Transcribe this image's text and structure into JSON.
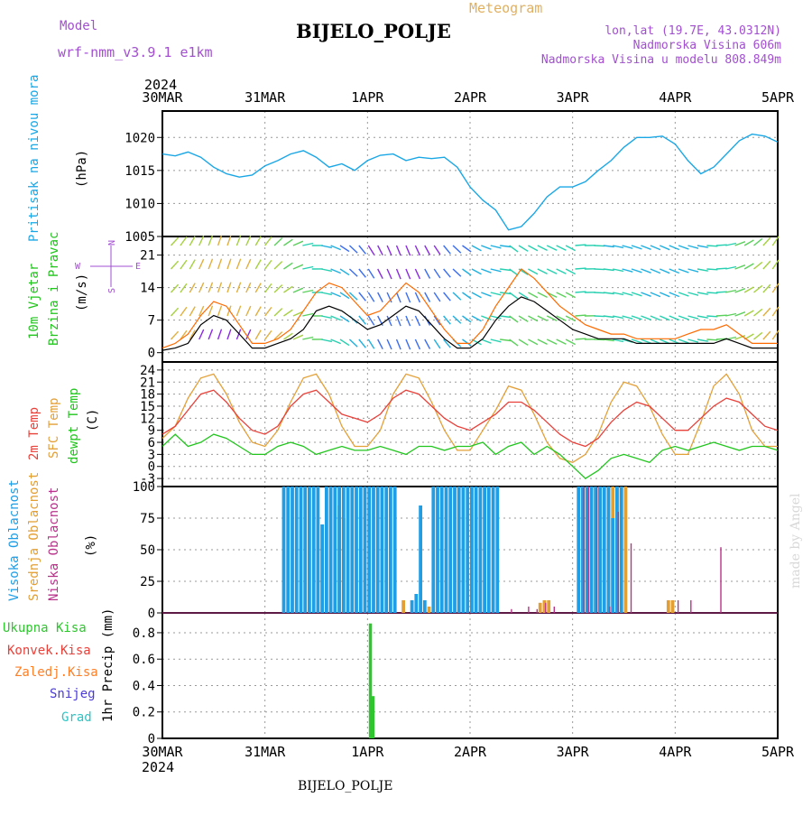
{
  "header": {
    "model_label": "Model",
    "model_name": "wrf-nmm_v3.9.1 e1km",
    "title": "BIJELO_POLJE",
    "product": "Meteogram",
    "lonlat": "lon,lat (19.7E, 43.0312N)",
    "elevation": "Nadmorska Visina 606m",
    "model_elevation": "Nadmorska Visina u modelu 808.849m",
    "watermark": "made by Angel",
    "footer_station": "BIJELO_POLJE"
  },
  "time_axis": {
    "year": "2024",
    "ticks": [
      "30MAR",
      "31MAR",
      "1APR",
      "2APR",
      "3APR",
      "4APR",
      "5APR"
    ]
  },
  "panels": {
    "pressure": {
      "label": "Pritisak na nivou mora",
      "unit": "(hPa)"
    },
    "wind": {
      "label1": "10m Vjetar",
      "label2": "Brzina i Pravac",
      "unit": "(m/s)",
      "compass": {
        "n": "N",
        "s": "S",
        "e": "E",
        "w": "W"
      }
    },
    "temp": {
      "label1": "2m Temp",
      "label2": "SFC Temp",
      "label3": "dewpt Temp",
      "unit": "(C)"
    },
    "cloud": {
      "label1": "Visoka Oblacnost",
      "label2": "Srednja Oblacnost",
      "label3": "Niska Oblacnost",
      "unit": "(%)"
    },
    "precip": {
      "label_total": "Ukupna Kisa",
      "label_conv": "Konvek.Kisa",
      "label_frz": "Zaledj.Kisa",
      "label_snow": "Snijeg",
      "label_grad": "Grad",
      "unit": "1hr Precip (mm)"
    }
  },
  "colors": {
    "pressure": "#1aa7e6",
    "wind_speed": "#000000",
    "wind_gust": "#ff6a00",
    "t2m": "#e8413a",
    "sfc": "#e3a13a",
    "dew": "#22c51e",
    "cloud_high": "#1f9ee6",
    "cloud_mid": "#e39f34",
    "cloud_low": "#b8338a",
    "total": "#2ec52e",
    "conv": "#e8413a",
    "frz": "#ff7f27",
    "snow": "#4b3bd8",
    "grad": "#2dc3c3",
    "model": "#a24fd0",
    "product": "#e0b060"
  },
  "chart_data": [
    {
      "type": "line",
      "name": "pressure",
      "ylabel": "(hPa)",
      "ylim": [
        1005,
        1024
      ],
      "yticks": [
        1005,
        1010,
        1015,
        1020
      ],
      "x_hours": [
        0,
        3,
        6,
        9,
        12,
        15,
        18,
        21,
        24,
        27,
        30,
        33,
        36,
        39,
        42,
        45,
        48,
        51,
        54,
        57,
        60,
        63,
        66,
        69,
        72,
        75,
        78,
        81,
        84,
        87,
        90,
        93,
        96,
        99,
        102,
        105,
        108,
        111,
        114,
        117,
        120,
        123,
        126,
        129,
        132,
        135,
        138,
        141,
        144
      ],
      "series": [
        {
          "values": [
            1017.5,
            1017.2,
            1017.8,
            1017,
            1015.5,
            1014.5,
            1014,
            1014.3,
            1015.7,
            1016.5,
            1017.5,
            1018,
            1017,
            1015.5,
            1016,
            1015,
            1016.5,
            1017.3,
            1017.5,
            1016.5,
            1017,
            1016.8,
            1017,
            1015.5,
            1012.5,
            1010.5,
            1009,
            1006,
            1006.5,
            1008.5,
            1011,
            1012.5,
            1012.5,
            1013.3,
            1015,
            1016.5,
            1018.5,
            1020,
            1020,
            1020.2,
            1019,
            1016.5,
            1014.5,
            1015.5,
            1017.5,
            1019.5,
            1020.5,
            1020.2,
            1019.3
          ]
        }
      ]
    },
    {
      "type": "line",
      "name": "wind",
      "ylabel": "(m/s)",
      "ylim": [
        -2,
        25
      ],
      "yticks": [
        0,
        7,
        14,
        21
      ],
      "x_hours": [
        0,
        3,
        6,
        9,
        12,
        15,
        18,
        21,
        24,
        27,
        30,
        33,
        36,
        39,
        42,
        45,
        48,
        51,
        54,
        57,
        60,
        63,
        66,
        69,
        72,
        75,
        78,
        81,
        84,
        87,
        90,
        93,
        96,
        99,
        102,
        105,
        108,
        111,
        114,
        117,
        120,
        123,
        126,
        129,
        132,
        135,
        138,
        141,
        144
      ],
      "series": [
        {
          "values": [
            0.5,
            1,
            2,
            6,
            8,
            7,
            4,
            1,
            1,
            2,
            3,
            5,
            9,
            10,
            9,
            7,
            5,
            6,
            8,
            10,
            9,
            6,
            3,
            1,
            1,
            3,
            7,
            10,
            12,
            11,
            9,
            7,
            5,
            4,
            3,
            3,
            3,
            2,
            2,
            2,
            2,
            2,
            2,
            2,
            3,
            2,
            1,
            1,
            1
          ]
        },
        {
          "values": [
            1,
            2,
            4,
            8,
            11,
            10,
            6,
            2,
            2,
            3,
            5,
            9,
            13,
            15,
            14,
            11,
            8,
            9,
            12,
            15,
            13,
            9,
            5,
            2,
            2,
            5,
            10,
            14,
            18,
            16,
            13,
            10,
            8,
            6,
            5,
            4,
            4,
            3,
            3,
            3,
            3,
            4,
            5,
            5,
            6,
            4,
            2,
            2,
            2
          ]
        }
      ]
    },
    {
      "type": "line",
      "name": "temperature",
      "ylabel": "(C)",
      "ylim": [
        -5,
        26
      ],
      "yticks": [
        -3,
        0,
        3,
        6,
        9,
        12,
        15,
        18,
        21,
        24
      ],
      "x_hours": [
        0,
        3,
        6,
        9,
        12,
        15,
        18,
        21,
        24,
        27,
        30,
        33,
        36,
        39,
        42,
        45,
        48,
        51,
        54,
        57,
        60,
        63,
        66,
        69,
        72,
        75,
        78,
        81,
        84,
        87,
        90,
        93,
        96,
        99,
        102,
        105,
        108,
        111,
        114,
        117,
        120,
        123,
        126,
        129,
        132,
        135,
        138,
        141,
        144
      ],
      "series": [
        {
          "name": "2m Temp",
          "values": [
            8,
            10,
            14,
            18,
            19,
            16,
            12,
            9,
            8,
            10,
            15,
            18,
            19,
            16,
            13,
            12,
            11,
            13,
            17,
            19,
            18,
            15,
            12,
            10,
            9,
            11,
            13,
            16,
            16,
            14,
            11,
            8,
            6,
            5,
            7,
            11,
            14,
            16,
            15,
            12,
            9,
            9,
            12,
            15,
            17,
            16,
            13,
            10,
            9
          ]
        },
        {
          "name": "SFC Temp",
          "values": [
            7,
            10,
            17,
            22,
            23,
            18,
            11,
            6,
            5,
            9,
            16,
            22,
            23,
            18,
            10,
            5,
            5,
            9,
            18,
            23,
            22,
            16,
            9,
            4,
            4,
            9,
            14,
            20,
            19,
            13,
            6,
            2,
            1,
            3,
            8,
            16,
            21,
            20,
            15,
            8,
            3,
            3,
            11,
            20,
            23,
            18,
            9,
            5,
            5
          ]
        },
        {
          "name": "dewpt Temp",
          "values": [
            5,
            8,
            5,
            6,
            8,
            7,
            5,
            3,
            3,
            5,
            6,
            5,
            3,
            4,
            5,
            4,
            4,
            5,
            4,
            3,
            5,
            5,
            4,
            5,
            5,
            6,
            3,
            5,
            6,
            3,
            5,
            3,
            0,
            -3,
            -1,
            2,
            3,
            2,
            1,
            4,
            5,
            4,
            5,
            6,
            5,
            4,
            5,
            5,
            4
          ]
        }
      ]
    },
    {
      "type": "bar",
      "name": "cloud",
      "ylabel": "(%)",
      "ylim": [
        0,
        100
      ],
      "yticks": [
        0,
        25,
        50,
        75,
        100
      ],
      "bars_high": [
        [
          28,
          100
        ],
        [
          29,
          100
        ],
        [
          30,
          100
        ],
        [
          31,
          100
        ],
        [
          32,
          100
        ],
        [
          33,
          100
        ],
        [
          34,
          100
        ],
        [
          35,
          100
        ],
        [
          36,
          100
        ],
        [
          37,
          70
        ],
        [
          38,
          100
        ],
        [
          39,
          100
        ],
        [
          40,
          100
        ],
        [
          41,
          100
        ],
        [
          42,
          100
        ],
        [
          43,
          100
        ],
        [
          44,
          100
        ],
        [
          45,
          100
        ],
        [
          46,
          100
        ],
        [
          47,
          100
        ],
        [
          48,
          100
        ],
        [
          49,
          100
        ],
        [
          50,
          100
        ],
        [
          51,
          100
        ],
        [
          52,
          100
        ],
        [
          53,
          100
        ],
        [
          54,
          100
        ],
        [
          58,
          10
        ],
        [
          59,
          15
        ],
        [
          60,
          85
        ],
        [
          61,
          10
        ],
        [
          63,
          100
        ],
        [
          64,
          100
        ],
        [
          65,
          100
        ],
        [
          66,
          100
        ],
        [
          67,
          100
        ],
        [
          68,
          100
        ],
        [
          69,
          100
        ],
        [
          70,
          100
        ],
        [
          71,
          100
        ],
        [
          72,
          100
        ],
        [
          73,
          100
        ],
        [
          74,
          100
        ],
        [
          75,
          100
        ],
        [
          76,
          100
        ],
        [
          77,
          100
        ],
        [
          78,
          100
        ],
        [
          97,
          100
        ],
        [
          98,
          100
        ],
        [
          99,
          100
        ],
        [
          100,
          100
        ],
        [
          101,
          100
        ],
        [
          102,
          100
        ],
        [
          103,
          100
        ],
        [
          104,
          100
        ],
        [
          105,
          75
        ],
        [
          106,
          100
        ],
        [
          107,
          100
        ]
      ],
      "bars_mid": [
        [
          41,
          85
        ],
        [
          42,
          75
        ],
        [
          56,
          10
        ],
        [
          62,
          5
        ],
        [
          88,
          8
        ],
        [
          89,
          10
        ],
        [
          90,
          10
        ],
        [
          97,
          100
        ],
        [
          98,
          100
        ],
        [
          99,
          100
        ],
        [
          100,
          100
        ],
        [
          101,
          100
        ],
        [
          102,
          100
        ],
        [
          103,
          100
        ],
        [
          104,
          100
        ],
        [
          105,
          100
        ],
        [
          106,
          100
        ],
        [
          107,
          100
        ],
        [
          108,
          100
        ],
        [
          118,
          10
        ],
        [
          119,
          10
        ]
      ],
      "bars_low": [
        [
          81,
          3
        ],
        [
          85,
          5
        ],
        [
          87,
          3
        ],
        [
          89,
          8
        ],
        [
          91,
          5
        ],
        [
          98,
          100
        ],
        [
          99,
          100
        ],
        [
          101,
          100
        ],
        [
          104,
          5
        ],
        [
          106,
          80
        ],
        [
          109,
          55
        ],
        [
          120,
          10
        ],
        [
          123,
          10
        ],
        [
          130,
          52
        ]
      ]
    },
    {
      "type": "bar",
      "name": "precip",
      "ylabel": "1hr Precip (mm)",
      "ylim": [
        0,
        0.95
      ],
      "yticks": [
        0,
        0.2,
        0.4,
        0.6,
        0.8
      ],
      "bars_total": [
        [
          48.3,
          0.87
        ],
        [
          48.9,
          0.32
        ]
      ]
    }
  ]
}
